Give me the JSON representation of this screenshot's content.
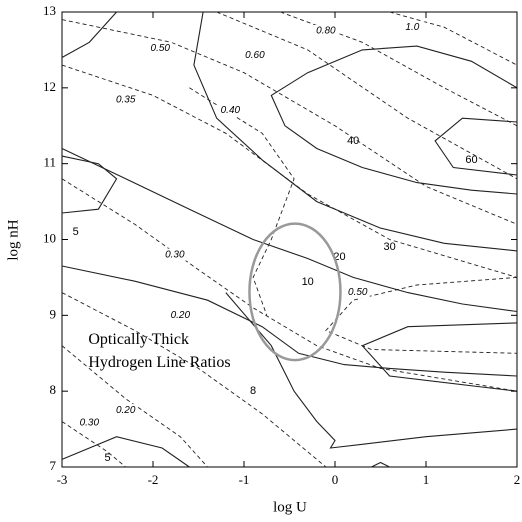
{
  "chart_data": {
    "type": "contour",
    "xlabel": "log U",
    "ylabel": "log nH",
    "xlim": [
      -3,
      2
    ],
    "ylim": [
      7,
      13
    ],
    "xticks": [
      -3,
      -2,
      -1,
      0,
      1,
      2
    ],
    "yticks": [
      7,
      8,
      9,
      10,
      11,
      12,
      13
    ],
    "series": [
      {
        "style": "solid",
        "x": [
          -2.4,
          -2.7,
          -3
        ],
        "y": [
          13,
          12.6,
          12.4
        ]
      },
      {
        "style": "solid",
        "x": [
          2,
          1.5,
          0.9,
          0.3,
          -0.3,
          -0.7,
          -0.55,
          -0.2,
          0.3,
          0.9,
          1.5,
          2
        ],
        "y": [
          12.0,
          12.35,
          12.55,
          12.5,
          12.2,
          11.9,
          11.5,
          11.2,
          10.95,
          10.75,
          10.65,
          10.6
        ],
        "label": "40",
        "label_x": 0.2,
        "label_y": 11.3
      },
      {
        "style": "solid",
        "x": [
          2,
          1.4,
          1.1,
          1.3,
          2
        ],
        "y": [
          11.55,
          11.6,
          11.3,
          10.95,
          10.85
        ],
        "label": "60",
        "label_x": 1.5,
        "label_y": 11.05
      },
      {
        "style": "solid",
        "x": [
          -1.45,
          -1.55,
          -1.3,
          -0.8,
          -0.2,
          0.5,
          1.2,
          2
        ],
        "y": [
          13,
          12.3,
          11.6,
          11.05,
          10.5,
          10.15,
          9.95,
          9.85
        ],
        "label": "30",
        "label_x": 0.6,
        "label_y": 9.9
      },
      {
        "style": "solid",
        "x": [
          -3,
          -2.3,
          -1.6,
          -0.9,
          -0.3,
          0.2,
          0.8,
          1.4,
          2
        ],
        "y": [
          11.2,
          10.8,
          10.4,
          10.0,
          9.75,
          9.5,
          9.3,
          9.15,
          9.05
        ],
        "label": "20",
        "label_x": 0.05,
        "label_y": 9.77
      },
      {
        "style": "solid",
        "x": [
          -3,
          -2.2,
          -1.4,
          -0.8,
          -0.4,
          0.1,
          0.6,
          1.2,
          2
        ],
        "y": [
          9.65,
          9.45,
          9.2,
          8.85,
          8.5,
          8.35,
          8.3,
          8.25,
          8.2
        ],
        "label": "10",
        "label_x": -0.3,
        "label_y": 9.44
      },
      {
        "style": "solid",
        "x": [
          -1.2,
          -0.7,
          -0.45,
          -0.2,
          0,
          -0.05,
          0.3,
          1.0,
          2
        ],
        "y": [
          9.3,
          8.6,
          8.0,
          7.6,
          7.35,
          7.25,
          7.3,
          7.4,
          7.5
        ],
        "label": "8",
        "label_x": -0.9,
        "label_y": 8.0
      },
      {
        "style": "solid",
        "x": [
          -3,
          -2.6,
          -2.4,
          -2.6,
          -3
        ],
        "y": [
          10.35,
          10.4,
          10.8,
          11.0,
          11.1
        ],
        "label": "5",
        "label_x": -2.85,
        "label_y": 10.1
      },
      {
        "style": "solid",
        "x": [
          -3,
          -2.4,
          -1.9,
          -1.6
        ],
        "y": [
          7.1,
          7.4,
          7.25,
          7
        ],
        "label": "5",
        "label_x": -2.5,
        "label_y": 7.12
      },
      {
        "style": "solid",
        "x": [
          2,
          0.8,
          0.3,
          0.6,
          2
        ],
        "y": [
          8.9,
          8.85,
          8.6,
          8.2,
          8.0
        ]
      },
      {
        "style": "solid",
        "x": [
          0.4,
          0.5,
          0.6
        ],
        "y": [
          7,
          7.06,
          7
        ]
      },
      {
        "style": "dashed",
        "x": [
          0.6,
          1.2,
          2
        ],
        "y": [
          13,
          12.8,
          12.3
        ],
        "label": "1.0",
        "label_x": 0.85,
        "label_y": 12.8
      },
      {
        "style": "dashed",
        "x": [
          -0.6,
          0.3,
          1.2,
          2
        ],
        "y": [
          13,
          12.6,
          12.0,
          11.5
        ],
        "label": "0.80",
        "label_x": -0.1,
        "label_y": 12.75
      },
      {
        "style": "dashed",
        "x": [
          -1.3,
          -0.3,
          0.8,
          2
        ],
        "y": [
          13,
          12.5,
          11.6,
          10.8
        ],
        "label": "0.60",
        "label_x": -0.88,
        "label_y": 12.43
      },
      {
        "style": "dashed",
        "x": [
          -3,
          -1.8,
          -1,
          0,
          1,
          2
        ],
        "y": [
          12.9,
          12.6,
          12.2,
          11.5,
          10.7,
          10.2
        ],
        "label": "0.50",
        "label_x": -1.92,
        "label_y": 12.52
      },
      {
        "style": "dashed",
        "x": [
          -3,
          -2,
          -1.2,
          -0.3,
          0.6,
          2
        ],
        "y": [
          12.3,
          11.9,
          11.4,
          10.6,
          10.0,
          9.5
        ],
        "label": "0.35",
        "label_x": -2.3,
        "label_y": 11.84
      },
      {
        "style": "dashed",
        "x": [
          -1.6,
          -0.8,
          -0.45,
          -0.7,
          -0.9,
          -0.75
        ],
        "y": [
          12.0,
          11.4,
          10.8,
          10.0,
          9.5,
          9.0
        ],
        "label": "0.40",
        "label_x": -1.15,
        "label_y": 11.7
      },
      {
        "style": "dashed",
        "x": [
          -3,
          -2.2,
          -1.5,
          -0.9,
          -0.2,
          0.5,
          2
        ],
        "y": [
          10.8,
          10.2,
          9.6,
          9.1,
          8.6,
          8.3,
          8.0
        ],
        "label": "0.30",
        "label_x": -1.76,
        "label_y": 9.8
      },
      {
        "style": "dashed",
        "x": [
          -3,
          -2.2,
          -1.5,
          -0.8,
          -0.3,
          -0.1
        ],
        "y": [
          9.3,
          8.8,
          8.3,
          7.7,
          7.2,
          7
        ],
        "label": "0.20",
        "label_x": -1.7,
        "label_y": 9.0
      },
      {
        "style": "dashed",
        "x": [
          -3,
          -2.3,
          -1.7,
          -1.4
        ],
        "y": [
          8.6,
          7.9,
          7.4,
          7
        ],
        "label": "0.20",
        "label_x": -2.3,
        "label_y": 7.75
      },
      {
        "style": "dashed",
        "x": [
          -3,
          -2.5,
          -2.3
        ],
        "y": [
          7.6,
          7.2,
          7
        ],
        "label": "0.30",
        "label_x": -2.7,
        "label_y": 7.58
      },
      {
        "style": "dashed",
        "x": [
          2,
          0.9,
          0.2,
          -0.1,
          0.4,
          2
        ],
        "y": [
          9.5,
          9.4,
          9.2,
          8.8,
          8.55,
          8.5
        ],
        "label": "0.50",
        "label_x": 0.25,
        "label_y": 9.3
      }
    ],
    "ellipse": {
      "cx": -0.44,
      "cy": 9.31,
      "rx": 0.5,
      "ry": 0.9,
      "color": "#999999"
    },
    "annotations": [
      {
        "text": "Optically Thick",
        "x": -2.71,
        "y": 8.67
      },
      {
        "text": "Hydrogen Line Ratios",
        "x": -2.71,
        "y": 8.37
      }
    ]
  }
}
